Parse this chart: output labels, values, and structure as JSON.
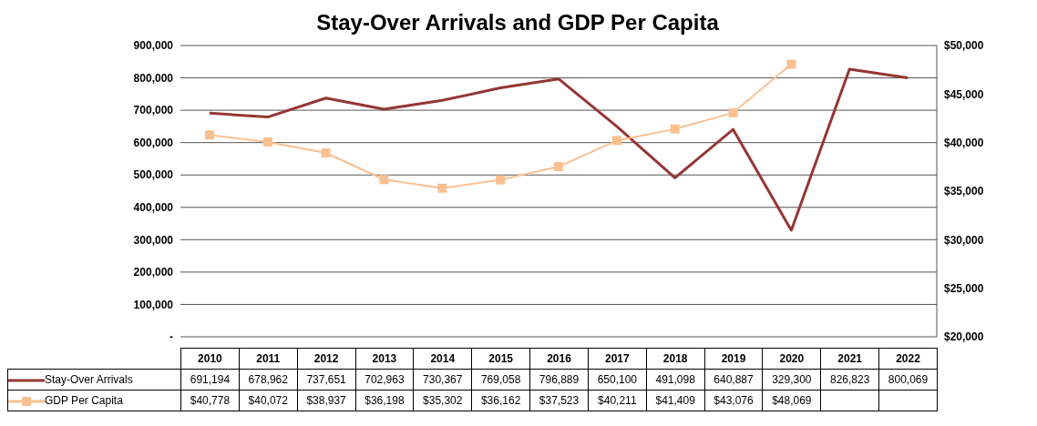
{
  "chart_data": {
    "type": "line",
    "title": "Stay-Over Arrivals and GDP Per Capita",
    "categories": [
      "2010",
      "2011",
      "2012",
      "2013",
      "2014",
      "2015",
      "2016",
      "2017",
      "2018",
      "2019",
      "2020",
      "2021",
      "2022"
    ],
    "series": [
      {
        "name": "Stay-Over Arrivals",
        "color": "#943634",
        "marker": "none",
        "values": [
          691194,
          678962,
          737651,
          702963,
          730367,
          769058,
          796889,
          650100,
          491098,
          640887,
          329300,
          826823,
          800069
        ],
        "value_labels": [
          "691,194",
          "678,962",
          "737,651",
          "702,963",
          "730,367",
          "769,058",
          "796,889",
          "650,100",
          "491,098",
          "640,887",
          "329,300",
          "826,823",
          "800,069"
        ]
      },
      {
        "name": "GDP Per Capita",
        "color": "#fac090",
        "marker": "square",
        "axis": "y2",
        "values": [
          40778,
          40072,
          38937,
          36198,
          35302,
          36162,
          37523,
          40211,
          41409,
          43076,
          48069,
          null,
          null
        ],
        "value_labels": [
          "$40,778",
          "$40,072",
          "$38,937",
          "$36,198",
          "$35,302",
          "$36,162",
          "$37,523",
          "$40,211",
          "$41,409",
          "$43,076",
          "$48,069",
          null,
          null
        ]
      }
    ],
    "ylim": [
      0,
      900000
    ],
    "yticks": [
      {
        "value": 0,
        "label": "-"
      },
      {
        "value": 100000,
        "label": "100,000"
      },
      {
        "value": 200000,
        "label": "200,000"
      },
      {
        "value": 300000,
        "label": "300,000"
      },
      {
        "value": 400000,
        "label": "400,000"
      },
      {
        "value": 500000,
        "label": "500,000"
      },
      {
        "value": 600000,
        "label": "600,000"
      },
      {
        "value": 700000,
        "label": "700,000"
      },
      {
        "value": 800000,
        "label": "800,000"
      },
      {
        "value": 900000,
        "label": "900,000"
      }
    ],
    "y2lim": [
      20000,
      50000
    ],
    "y2ticks": [
      {
        "value": 20000,
        "label": "$20,000"
      },
      {
        "value": 25000,
        "label": "$25,000"
      },
      {
        "value": 30000,
        "label": "$30,000"
      },
      {
        "value": 35000,
        "label": "$35,000"
      },
      {
        "value": 40000,
        "label": "$40,000"
      },
      {
        "value": 45000,
        "label": "$45,000"
      },
      {
        "value": 50000,
        "label": "$50,000"
      }
    ],
    "grid": "y",
    "legend": "bottom"
  }
}
